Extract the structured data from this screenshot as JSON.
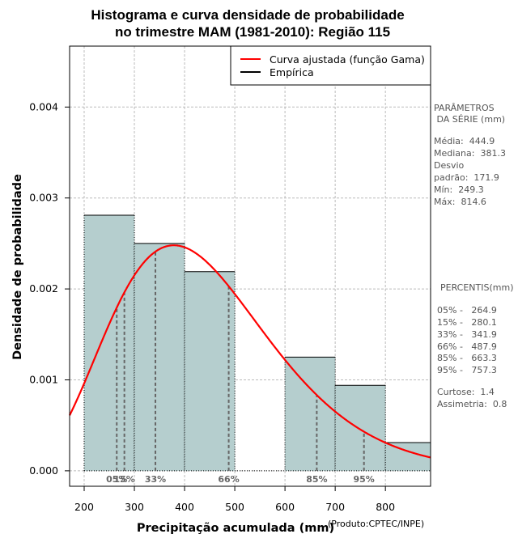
{
  "chart_data": {
    "type": "bar",
    "title_lines": [
      "Histograma e curva densidade de probabilidade",
      "no trimestre MAM (1981-2010): Região 115"
    ],
    "xlabel": "Precipitação acumulada (mm)",
    "xlabel_note": "(Produto:CPTEC/INPE)",
    "ylabel": "Densidade de probabilidade",
    "xlim": [
      171,
      890
    ],
    "ylim": [
      -0.00017,
      0.00467
    ],
    "x_ticks": [
      200,
      300,
      400,
      500,
      600,
      700,
      800
    ],
    "x_tick_labels": [
      "200",
      "300",
      "400",
      "500",
      "600",
      "700",
      "800"
    ],
    "y_ticks": [
      0,
      0.001,
      0.002,
      0.003,
      0.004
    ],
    "y_tick_labels": [
      "0.000",
      "0.001",
      "0.002",
      "0.003",
      "0.004"
    ],
    "grid": true,
    "histogram": {
      "name": "Empírica",
      "bins": [
        {
          "from": 200,
          "to": 300,
          "density": 0.00281
        },
        {
          "from": 300,
          "to": 400,
          "density": 0.0025
        },
        {
          "from": 400,
          "to": 500,
          "density": 0.00219
        },
        {
          "from": 500,
          "to": 600,
          "density": 0.0
        },
        {
          "from": 600,
          "to": 700,
          "density": 0.00125
        },
        {
          "from": 700,
          "to": 800,
          "density": 0.00094
        },
        {
          "from": 800,
          "to": 900,
          "density": 0.00031
        }
      ],
      "fill_color": "#b5cece",
      "edge_color": "#000000"
    },
    "fitted_curve": {
      "name": "Curva ajustada (função Gama)",
      "distribution": "gamma",
      "mean": 444.9,
      "sd": 171.9,
      "color": "#ff0000"
    },
    "percentile_markers": [
      {
        "label": "05%",
        "value": 264.9
      },
      {
        "label": "15%",
        "value": 280.1
      },
      {
        "label": "33%",
        "value": 341.9
      },
      {
        "label": "66%",
        "value": 487.9
      },
      {
        "label": "85%",
        "value": 663.3
      },
      {
        "label": "95%",
        "value": 757.3
      }
    ],
    "legend": {
      "position": "top-right",
      "entries": [
        {
          "label": "Curva ajustada (função Gama)",
          "color": "#ff0000"
        },
        {
          "label": "Empírica",
          "color": "#000000"
        }
      ]
    }
  },
  "side_panel": {
    "params_title_1": "PARÂMETROS",
    "params_title_2": " DA SÉRIE (mm)",
    "params": [
      "Média:  444.9",
      "Mediana:  381.3",
      "Desvio",
      "padrão:  171.9",
      "Mín:  249.3",
      "Máx:  814.6"
    ],
    "percentis_title": "PERCENTIS(mm)",
    "percentis": [
      "05% -   264.9",
      "15% -   280.1",
      "33% -   341.9",
      "66% -   487.9",
      "85% -   663.3",
      "95% -   757.3"
    ],
    "curtose": "Curtose:  1.4",
    "assimetria": "Assimetria:  0.8"
  }
}
